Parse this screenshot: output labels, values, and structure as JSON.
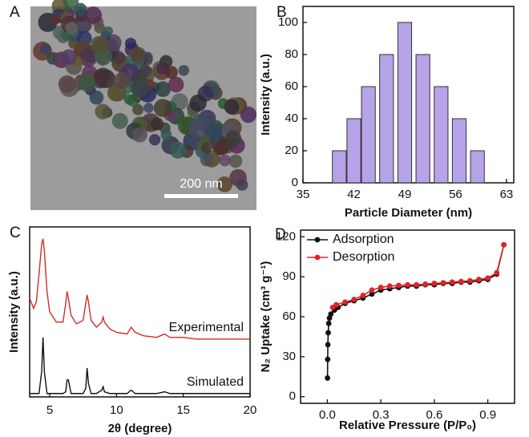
{
  "chart_data": [
    {
      "type": "image",
      "label": "A",
      "scale_bar": "200 nm"
    },
    {
      "type": "bar",
      "label": "B",
      "x_label": "Particle Diameter (nm)",
      "y_label": "Intensity (a.u.)",
      "x": [
        40,
        42,
        44,
        46.5,
        49,
        51.5,
        54,
        56.5,
        59
      ],
      "values": [
        20,
        40,
        60,
        80,
        100,
        80,
        60,
        40,
        20
      ],
      "color": "#b6a3e8",
      "xlim": [
        35,
        64
      ],
      "xticks": [
        35,
        42,
        49,
        56,
        63
      ],
      "ylim": [
        0,
        110
      ],
      "yticks": [
        0,
        20,
        40,
        60,
        80,
        100
      ]
    },
    {
      "type": "line",
      "label": "C",
      "x_label": "2θ (degree)",
      "y_label": "Intensity (a.u.)",
      "legend": "inline",
      "x": [
        3.5,
        3.8,
        4.0,
        4.2,
        4.4,
        4.5,
        4.6,
        4.8,
        5.0,
        5.5,
        6.0,
        6.2,
        6.3,
        6.4,
        6.6,
        7.0,
        7.5,
        7.7,
        7.8,
        7.9,
        8.1,
        8.5,
        8.9,
        9.0,
        9.1,
        9.5,
        10.0,
        10.8,
        11.1,
        11.4,
        12.0,
        13.0,
        13.6,
        14.0,
        15.0,
        16.0,
        17.0,
        18.0,
        19.0,
        20.0
      ],
      "series": [
        {
          "name": "Experimental",
          "color": "#d42a2a",
          "values": [
            58,
            52,
            56,
            72,
            90,
            93,
            86,
            62,
            50,
            44,
            44,
            55,
            62,
            58,
            48,
            43,
            45,
            55,
            60,
            56,
            45,
            41,
            44,
            47,
            44,
            40,
            38,
            37,
            41,
            38,
            36,
            35,
            37,
            35,
            35,
            34,
            34,
            34,
            34,
            34
          ]
        },
        {
          "name": "Simulated",
          "color": "#111111",
          "values": [
            2,
            2,
            2,
            2,
            15,
            35,
            15,
            2,
            2,
            2,
            2,
            3,
            10,
            10,
            2,
            2,
            2,
            5,
            17,
            8,
            2,
            2,
            4,
            6,
            3,
            2,
            2,
            2,
            4,
            2,
            2,
            2,
            3,
            2,
            2,
            2,
            2,
            2,
            2,
            2
          ]
        }
      ],
      "xlim": [
        3.5,
        20
      ],
      "xticks": [
        5,
        10,
        15,
        20
      ],
      "ylim": [
        0,
        100
      ]
    },
    {
      "type": "line",
      "label": "D",
      "x_label": "Relative Pressure (P/P₀)",
      "y_label": "N₂ Uptake (cm³ g⁻¹)",
      "legend": "upper left",
      "markers": true,
      "series": [
        {
          "name": "Adsorption",
          "color": "#111111",
          "x": [
            0.001,
            0.002,
            0.003,
            0.005,
            0.008,
            0.012,
            0.02,
            0.04,
            0.06,
            0.1,
            0.15,
            0.2,
            0.25,
            0.3,
            0.35,
            0.4,
            0.45,
            0.5,
            0.55,
            0.6,
            0.65,
            0.7,
            0.75,
            0.8,
            0.85,
            0.9,
            0.95,
            0.99
          ],
          "values": [
            14,
            28,
            39,
            48,
            55,
            59,
            62,
            65,
            67,
            70,
            72,
            74,
            77,
            80,
            81,
            82,
            83,
            83,
            84,
            84,
            85,
            85,
            86,
            86,
            87,
            88,
            92,
            114
          ]
        },
        {
          "name": "Desorption",
          "color": "#e02424",
          "x": [
            0.99,
            0.95,
            0.9,
            0.85,
            0.8,
            0.75,
            0.7,
            0.65,
            0.6,
            0.55,
            0.5,
            0.45,
            0.4,
            0.35,
            0.3,
            0.25,
            0.2,
            0.15,
            0.1,
            0.05,
            0.03
          ],
          "values": [
            114,
            93,
            89,
            88,
            87,
            86.5,
            86,
            85.5,
            85,
            84.5,
            84,
            84,
            83.5,
            83,
            82,
            80,
            76,
            73,
            71,
            69,
            67
          ]
        }
      ],
      "xlim": [
        -0.15,
        1.05
      ],
      "xticks": [
        {
          "value": 0,
          "label": "0.0"
        },
        0.3,
        0.6,
        0.9
      ],
      "ylim": [
        -5,
        125
      ],
      "yticks": [
        0,
        30,
        60,
        90,
        120
      ]
    }
  ]
}
